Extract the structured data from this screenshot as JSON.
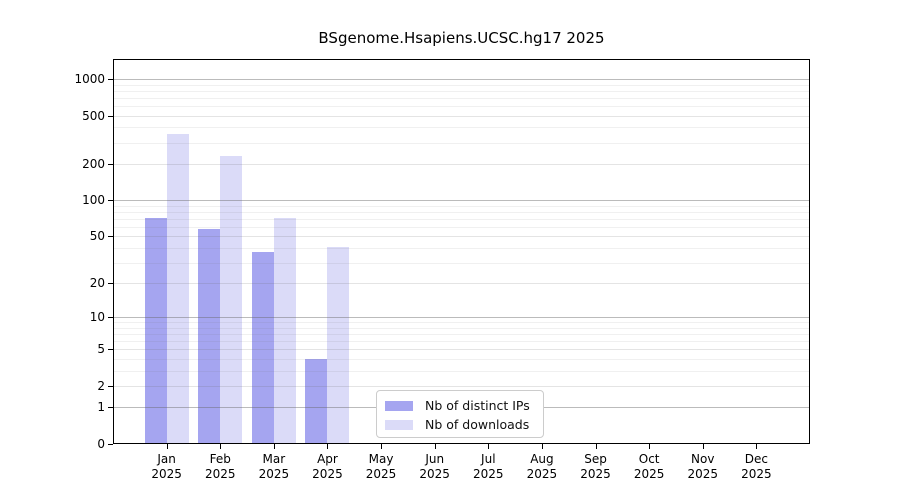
{
  "chart_data": {
    "type": "bar",
    "title": "BSgenome.Hsapiens.UCSC.hg17 2025",
    "categories": [
      "Jan",
      "Feb",
      "Mar",
      "Apr",
      "May",
      "Jun",
      "Jul",
      "Aug",
      "Sep",
      "Oct",
      "Nov",
      "Dec"
    ],
    "year": "2025",
    "series": [
      {
        "name": "Nb of distinct IPs",
        "color": "#a5a5f0",
        "values": [
          71,
          58,
          37,
          4,
          0,
          0,
          0,
          0,
          0,
          0,
          0,
          0
        ]
      },
      {
        "name": "Nb of downloads",
        "color": "#dbdbf8",
        "values": [
          350,
          233,
          71,
          41,
          0,
          0,
          0,
          0,
          0,
          0,
          0,
          0
        ]
      }
    ],
    "yticks": [
      0,
      1,
      2,
      5,
      10,
      20,
      50,
      100,
      200,
      500,
      1000
    ],
    "yscale": "log10(1+value)",
    "ylim": [
      0,
      1465
    ],
    "xlabel": "",
    "ylabel": "",
    "grid": true,
    "legend_position": "inside lower-center"
  }
}
